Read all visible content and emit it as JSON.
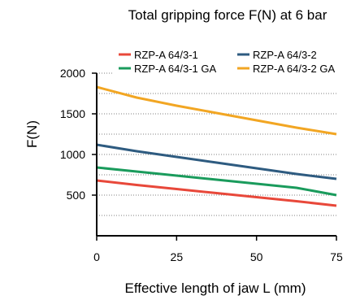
{
  "chart_data": {
    "type": "line",
    "title": "Total gripping force F(N) at 6 bar",
    "xlabel": "Effective length of jaw L (mm)",
    "ylabel": "F(N)",
    "xlim": [
      0,
      75
    ],
    "ylim": [
      0,
      2000
    ],
    "xticks": [
      0,
      25,
      50,
      75
    ],
    "yticks": [
      500,
      1000,
      1500,
      2000
    ],
    "grid": "horizontal dotted",
    "legend_position": "top",
    "x": [
      0,
      12.5,
      25,
      37.5,
      50,
      62.5,
      75
    ],
    "series": [
      {
        "name": "RZP-A 64/3-1",
        "color": "#e8483a",
        "values": [
          680,
          625,
          575,
          525,
          475,
          425,
          370
        ]
      },
      {
        "name": "RZP-A 64/3-2",
        "color": "#2e5b80",
        "values": [
          1120,
          1040,
          970,
          900,
          830,
          760,
          700
        ]
      },
      {
        "name": "RZP-A 64/3-1 GA",
        "color": "#1a9b5c",
        "values": [
          840,
          790,
          740,
          690,
          640,
          590,
          500
        ]
      },
      {
        "name": "RZP-A 64/3-2 GA",
        "color": "#f2a623",
        "values": [
          1830,
          1700,
          1600,
          1510,
          1420,
          1330,
          1250
        ]
      }
    ]
  }
}
